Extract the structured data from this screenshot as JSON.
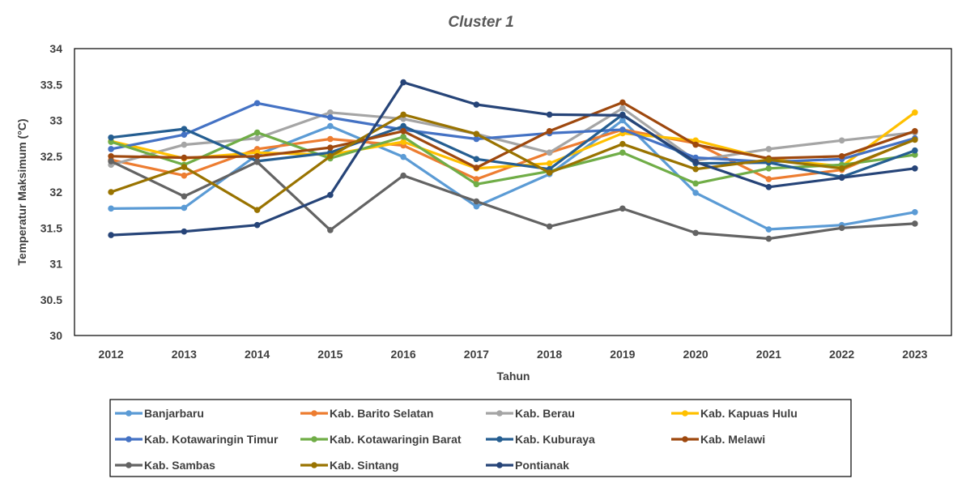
{
  "chart_data": {
    "type": "line",
    "title": "Cluster 1",
    "xlabel": "Tahun",
    "ylabel": "Temperatur Maksimum (°C)",
    "ylim": [
      30,
      34
    ],
    "yticks": [
      "30",
      "30.5",
      "31",
      "31.5",
      "32",
      "32.5",
      "33",
      "33.5",
      "34"
    ],
    "categories": [
      "2012",
      "2013",
      "2014",
      "2015",
      "2016",
      "2017",
      "2018",
      "2019",
      "2020",
      "2021",
      "2022",
      "2023"
    ],
    "grid": false,
    "legend_position": "bottom",
    "series": [
      {
        "name": "Banjarbaru",
        "color": "#5B9BD5",
        "values": [
          31.77,
          31.78,
          32.52,
          32.92,
          32.49,
          31.8,
          32.25,
          33.0,
          31.99,
          31.48,
          31.54,
          31.72
        ]
      },
      {
        "name": "Kab. Barito Selatan",
        "color": "#ED7D31",
        "values": [
          32.45,
          32.23,
          32.6,
          32.74,
          32.65,
          32.18,
          32.55,
          32.87,
          32.68,
          32.18,
          32.31,
          32.74
        ]
      },
      {
        "name": "Kab. Berau",
        "color": "#A5A5A5",
        "values": [
          32.38,
          32.66,
          32.75,
          33.11,
          33.02,
          32.81,
          32.55,
          33.17,
          32.44,
          32.6,
          32.72,
          32.83
        ]
      },
      {
        "name": "Kab. Kapuas Hulu",
        "color": "#FFC000",
        "values": [
          32.71,
          32.47,
          32.55,
          32.52,
          32.7,
          32.33,
          32.4,
          32.82,
          32.72,
          32.46,
          32.36,
          33.11
        ]
      },
      {
        "name": "Kab. Kotawaringin Timur",
        "color": "#4472C4",
        "values": [
          32.6,
          32.8,
          33.24,
          33.04,
          32.87,
          32.74,
          32.82,
          32.87,
          32.48,
          32.42,
          32.46,
          32.75
        ]
      },
      {
        "name": "Kab. Kotawaringin Barat",
        "color": "#70AD47",
        "values": [
          32.7,
          32.38,
          32.83,
          32.47,
          32.77,
          32.11,
          32.29,
          32.55,
          32.12,
          32.33,
          32.38,
          32.52
        ]
      },
      {
        "name": "Kab. Kuburaya",
        "color": "#255E91",
        "values": [
          32.76,
          32.88,
          32.43,
          32.55,
          32.92,
          32.46,
          32.32,
          33.08,
          32.4,
          32.41,
          32.21,
          32.58
        ]
      },
      {
        "name": "Kab. Melawi",
        "color": "#9E480E",
        "values": [
          32.5,
          32.48,
          32.5,
          32.62,
          32.85,
          32.34,
          32.85,
          33.25,
          32.66,
          32.47,
          32.5,
          32.85
        ]
      },
      {
        "name": "Kab. Sambas",
        "color": "#636363",
        "values": [
          32.43,
          31.94,
          32.42,
          31.47,
          32.23,
          31.87,
          31.52,
          31.77,
          31.43,
          31.35,
          31.5,
          31.56
        ]
      },
      {
        "name": "Kab. Sintang",
        "color": "#997300",
        "values": [
          32.0,
          32.35,
          31.75,
          32.5,
          33.08,
          32.81,
          32.27,
          32.67,
          32.32,
          32.45,
          32.33,
          32.73
        ]
      },
      {
        "name": "Pontianak",
        "color": "#264478",
        "values": [
          31.4,
          31.45,
          31.54,
          31.96,
          33.53,
          33.22,
          33.08,
          33.07,
          32.42,
          32.07,
          32.2,
          32.33
        ]
      }
    ]
  }
}
